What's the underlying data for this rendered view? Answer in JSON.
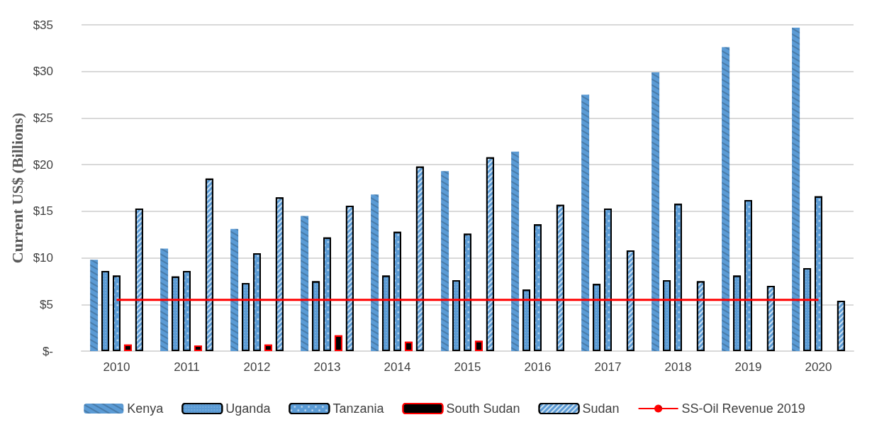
{
  "chart_data": {
    "type": "bar",
    "ylabel": "Current US$ (Billions)",
    "categories": [
      "2010",
      "2011",
      "2012",
      "2013",
      "2014",
      "2015",
      "2016",
      "2017",
      "2018",
      "2019",
      "2020"
    ],
    "series": [
      {
        "name": "Kenya",
        "color": "#5b9bd5",
        "values": [
          9.8,
          11.0,
          13.1,
          14.5,
          16.8,
          19.3,
          21.4,
          27.5,
          29.9,
          32.6,
          34.7
        ]
      },
      {
        "name": "Uganda",
        "color": "#5b9bd5",
        "values": [
          8.6,
          8.0,
          7.3,
          7.5,
          8.1,
          7.6,
          6.6,
          7.2,
          7.6,
          8.1,
          8.9
        ]
      },
      {
        "name": "Tanzania",
        "color": "#5b9bd5",
        "values": [
          8.1,
          8.6,
          10.5,
          12.2,
          12.8,
          12.6,
          13.6,
          15.3,
          15.8,
          16.2,
          16.6
        ]
      },
      {
        "name": "South Sudan",
        "color": "#000000",
        "values": [
          0.7,
          0.6,
          0.7,
          1.7,
          1.0,
          1.1,
          null,
          null,
          null,
          null,
          null
        ]
      },
      {
        "name": "Sudan",
        "color": "#5b9bd5",
        "values": [
          15.3,
          18.5,
          16.5,
          15.6,
          19.8,
          20.8,
          15.7,
          10.8,
          7.5,
          7.0,
          5.4
        ]
      },
      {
        "name": "SS-Oil Revenue 2019",
        "type": "line",
        "color": "#ff0000",
        "values": [
          5.5,
          5.5,
          5.5,
          5.5,
          5.5,
          5.5,
          5.5,
          5.5,
          5.5,
          5.5,
          5.5
        ]
      }
    ],
    "ylim": [
      0,
      35
    ],
    "yticks": [
      {
        "value": 0,
        "label": "$-"
      },
      {
        "value": 5,
        "label": "$5"
      },
      {
        "value": 10,
        "label": "$10"
      },
      {
        "value": 15,
        "label": "$15"
      },
      {
        "value": 20,
        "label": "$20"
      },
      {
        "value": 25,
        "label": "$25"
      },
      {
        "value": 30,
        "label": "$30"
      },
      {
        "value": 35,
        "label": "$35"
      }
    ],
    "grid": "y",
    "legend": "bottom",
    "marker": "none"
  }
}
